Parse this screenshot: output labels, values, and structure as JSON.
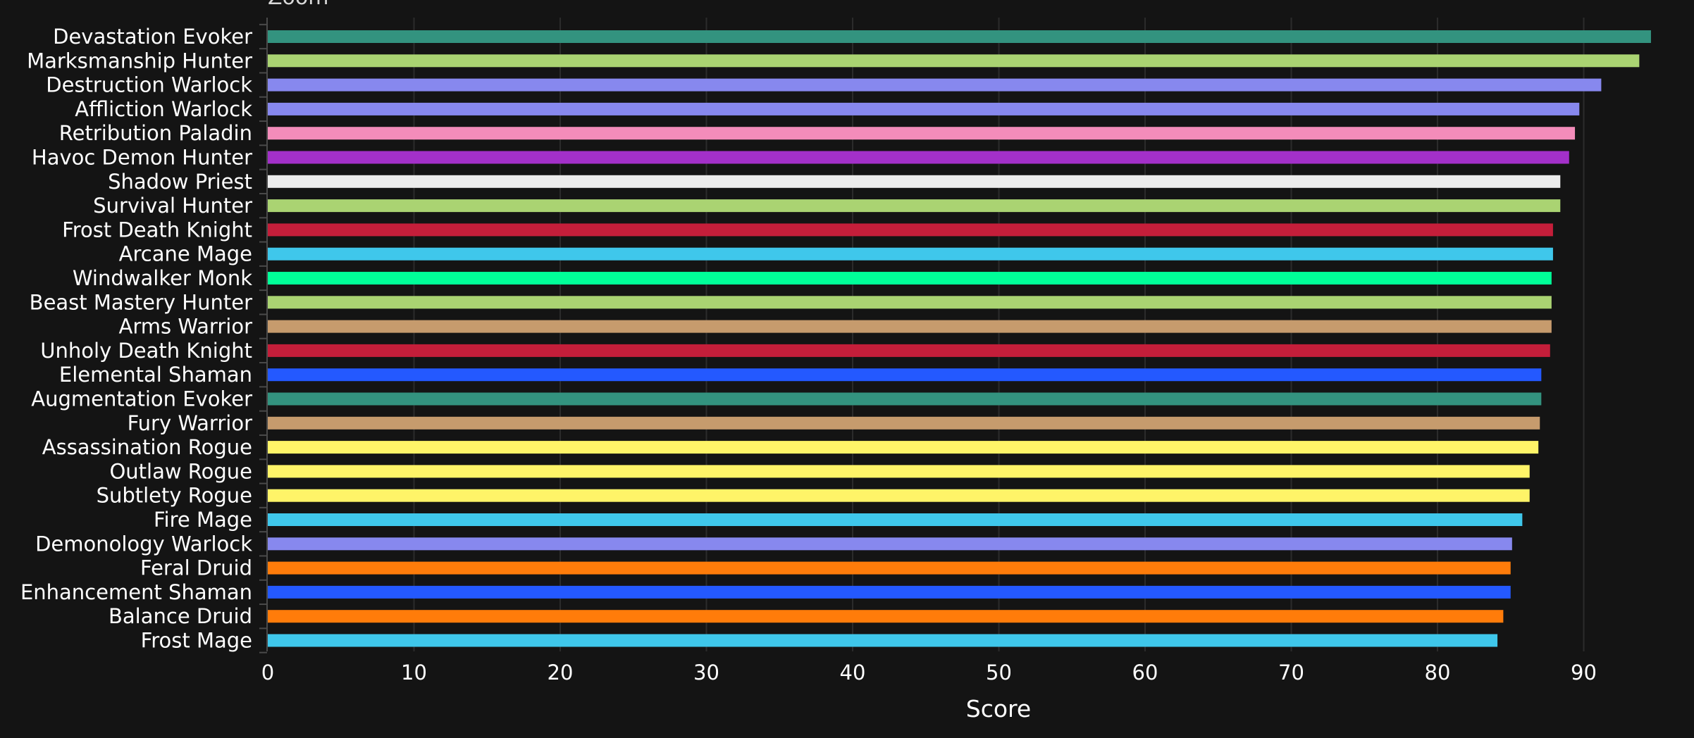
{
  "zoom_label": "Zoom",
  "chart_data": {
    "type": "bar",
    "orientation": "horizontal",
    "title": "",
    "xlabel": "Score",
    "ylabel": "",
    "xlim": [
      0,
      95
    ],
    "x_ticks": [
      0,
      10,
      20,
      30,
      40,
      50,
      60,
      70,
      80,
      90
    ],
    "grid": true,
    "legend": "none",
    "background": "#141414",
    "categories": [
      "Devastation Evoker",
      "Marksmanship Hunter",
      "Destruction Warlock",
      "Affliction Warlock",
      "Retribution Paladin",
      "Havoc Demon Hunter",
      "Shadow Priest",
      "Survival Hunter",
      "Frost Death Knight",
      "Arcane Mage",
      "Windwalker Monk",
      "Beast Mastery Hunter",
      "Arms Warrior",
      "Unholy Death Knight",
      "Elemental Shaman",
      "Augmentation Evoker",
      "Fury Warrior",
      "Assassination Rogue",
      "Outlaw Rogue",
      "Subtlety Rogue",
      "Fire Mage",
      "Demonology Warlock",
      "Feral Druid",
      "Enhancement Shaman",
      "Balance Druid",
      "Frost Mage"
    ],
    "values": [
      94.6,
      93.8,
      91.2,
      89.7,
      89.4,
      89.0,
      88.4,
      88.4,
      87.9,
      87.9,
      87.8,
      87.8,
      87.8,
      87.7,
      87.1,
      87.1,
      87.0,
      86.9,
      86.3,
      86.3,
      85.8,
      85.1,
      85.0,
      85.0,
      84.5,
      84.1
    ],
    "colors": [
      "#33937f",
      "#aad372",
      "#8788ee",
      "#8788ee",
      "#f48cba",
      "#a330c9",
      "#ececec",
      "#aad372",
      "#c41e3a",
      "#3fc7eb",
      "#00ff98",
      "#aad372",
      "#c69b6d",
      "#c41e3a",
      "#2459ff",
      "#33937f",
      "#c69b6d",
      "#fff468",
      "#fff468",
      "#fff468",
      "#3fc7eb",
      "#8788ee",
      "#ff7c0a",
      "#2459ff",
      "#ff7c0a",
      "#3fc7eb"
    ]
  }
}
